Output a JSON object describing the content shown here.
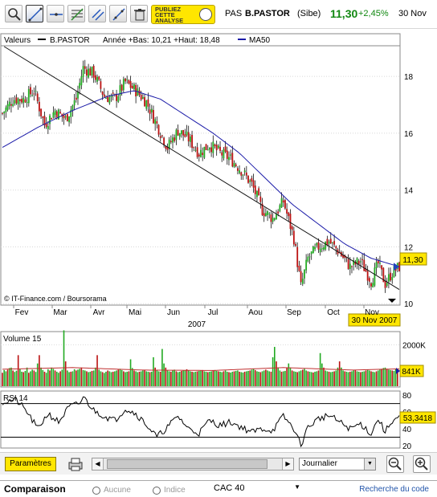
{
  "header": {
    "publish_text": "PUBLIEZ CETTE ANALYSE",
    "market": "PAS",
    "name": "B.PASTOR",
    "exchange": "(Sibe)",
    "price": "11,30",
    "change": "+2,45%",
    "date": "30 Nov"
  },
  "chart_data": [
    {
      "type": "candlestick",
      "title": "",
      "legend": {
        "label": "Valeurs",
        "series_name": "B.PASTOR",
        "range_text": "Année +Bas: 10,21 +Haut: 18,48",
        "ma_name": "MA50"
      },
      "credit": "© IT-Finance.com / Boursorama",
      "x_tick_labels": [
        "Fev",
        "Mar",
        "Avr",
        "Mai",
        "Jun",
        "Jul",
        "Aou",
        "Sep",
        "Oct",
        "Nov"
      ],
      "x_year_label": "2007",
      "date_badge": "30 Nov 2007",
      "y_tick_labels": [
        "18",
        "16",
        "14",
        "12",
        "10"
      ],
      "ylim": [
        9.95,
        19.05
      ],
      "last_price_badge": "11,30",
      "trendline": {
        "from": [
          1,
          19.05
        ],
        "to": [
          226,
          10.5
        ]
      },
      "prices": [
        {
          "x": 0,
          "y": 16.7
        },
        {
          "x": 6,
          "y": 17.2
        },
        {
          "x": 12,
          "y": 17.2
        },
        {
          "x": 18,
          "y": 17.5
        },
        {
          "x": 24,
          "y": 16.3
        },
        {
          "x": 30,
          "y": 16.8
        },
        {
          "x": 36,
          "y": 16.5
        },
        {
          "x": 42,
          "y": 17.2
        },
        {
          "x": 46,
          "y": 18.3
        },
        {
          "x": 52,
          "y": 18.1
        },
        {
          "x": 58,
          "y": 17.3
        },
        {
          "x": 64,
          "y": 17.2
        },
        {
          "x": 70,
          "y": 17.8
        },
        {
          "x": 76,
          "y": 17.5
        },
        {
          "x": 82,
          "y": 17.1
        },
        {
          "x": 88,
          "y": 16.3
        },
        {
          "x": 94,
          "y": 15.5
        },
        {
          "x": 100,
          "y": 16.1
        },
        {
          "x": 106,
          "y": 15.8
        },
        {
          "x": 112,
          "y": 15.3
        },
        {
          "x": 118,
          "y": 15.6
        },
        {
          "x": 124,
          "y": 15.3
        },
        {
          "x": 130,
          "y": 15.1
        },
        {
          "x": 136,
          "y": 14.7
        },
        {
          "x": 142,
          "y": 14.2
        },
        {
          "x": 148,
          "y": 13.3
        },
        {
          "x": 154,
          "y": 13.0
        },
        {
          "x": 160,
          "y": 13.6
        },
        {
          "x": 166,
          "y": 12.3
        },
        {
          "x": 170,
          "y": 10.6
        },
        {
          "x": 174,
          "y": 11.6
        },
        {
          "x": 180,
          "y": 12.0
        },
        {
          "x": 186,
          "y": 12.2
        },
        {
          "x": 192,
          "y": 11.8
        },
        {
          "x": 198,
          "y": 11.3
        },
        {
          "x": 204,
          "y": 11.5
        },
        {
          "x": 210,
          "y": 10.8
        },
        {
          "x": 214,
          "y": 11.4
        },
        {
          "x": 218,
          "y": 10.7
        },
        {
          "x": 222,
          "y": 11.1
        },
        {
          "x": 226,
          "y": 11.3
        }
      ],
      "ma50": [
        {
          "x": 0,
          "y": 15.5
        },
        {
          "x": 20,
          "y": 16.2
        },
        {
          "x": 40,
          "y": 16.8
        },
        {
          "x": 60,
          "y": 17.3
        },
        {
          "x": 75,
          "y": 17.5
        },
        {
          "x": 90,
          "y": 17.2
        },
        {
          "x": 105,
          "y": 16.6
        },
        {
          "x": 120,
          "y": 16.0
        },
        {
          "x": 135,
          "y": 15.3
        },
        {
          "x": 150,
          "y": 14.4
        },
        {
          "x": 165,
          "y": 13.5
        },
        {
          "x": 180,
          "y": 12.8
        },
        {
          "x": 195,
          "y": 12.1
        },
        {
          "x": 210,
          "y": 11.6
        },
        {
          "x": 226,
          "y": 11.3
        }
      ]
    },
    {
      "type": "bar",
      "title": "Volume 15",
      "y_tick_labels": [
        "2000K"
      ],
      "last_value_badge": "841K",
      "ylim": [
        0,
        2600
      ],
      "values": [
        650,
        780,
        720,
        800,
        880,
        900,
        760,
        690,
        750,
        1500,
        820,
        700,
        680,
        740,
        900,
        650,
        720,
        800,
        760,
        690,
        1100,
        1500,
        900,
        780,
        700,
        650,
        820,
        760,
        900,
        840,
        760,
        700,
        650,
        720,
        800,
        2700,
        1200,
        760,
        680,
        700,
        720,
        820,
        760,
        800,
        840,
        900,
        780,
        760,
        720,
        680,
        700,
        740,
        760,
        900,
        1500,
        800,
        720,
        680,
        640,
        700,
        760,
        720,
        680,
        700,
        720,
        760,
        800,
        840,
        780,
        720,
        680,
        700,
        720,
        1300,
        880,
        760,
        720,
        680,
        700,
        720,
        760,
        780,
        720,
        700,
        680,
        700,
        1400,
        900,
        760,
        720,
        700,
        1800,
        1100,
        900,
        760,
        720,
        700,
        760,
        800,
        720,
        680,
        700,
        740,
        760,
        780,
        820,
        760,
        720,
        700,
        680,
        700,
        720,
        740,
        760,
        780,
        720,
        700,
        680,
        700,
        720,
        760,
        780,
        740,
        720,
        700,
        680,
        720,
        760,
        700,
        680,
        660,
        700,
        720,
        740,
        760,
        700,
        680,
        660,
        700,
        720,
        740,
        760,
        800,
        840,
        780,
        720,
        700,
        680,
        720,
        760,
        800,
        760,
        720,
        700,
        1400,
        1900,
        1200,
        900,
        760,
        700,
        720,
        740,
        900,
        1100,
        900,
        760,
        720,
        700,
        680,
        720,
        760,
        800,
        840,
        760,
        720,
        700,
        680,
        660,
        700,
        720,
        760,
        1600,
        1100,
        900,
        760,
        720,
        700,
        680,
        700,
        720,
        760,
        900,
        1200,
        900,
        760,
        720,
        700,
        680,
        700,
        720,
        760,
        780,
        720,
        700,
        680,
        700,
        720,
        760,
        800,
        760,
        720,
        700,
        680,
        720,
        760,
        800,
        840,
        880,
        900,
        841,
        800,
        780,
        760,
        740,
        841,
        841
      ],
      "ma15": [
        {
          "x": 0,
          "y": 820
        },
        {
          "x": 40,
          "y": 900
        },
        {
          "x": 80,
          "y": 780
        },
        {
          "x": 120,
          "y": 760
        },
        {
          "x": 160,
          "y": 900
        },
        {
          "x": 200,
          "y": 780
        },
        {
          "x": 226,
          "y": 841
        }
      ]
    },
    {
      "type": "line",
      "title": "RSI 14",
      "y_tick_labels": [
        "80",
        "60",
        "40",
        "20"
      ],
      "ylim": [
        18,
        84
      ],
      "reference_lines": [
        70,
        30
      ],
      "last_value_badge": "53,3418",
      "values": [
        {
          "x": 0,
          "y": 72
        },
        {
          "x": 8,
          "y": 74
        },
        {
          "x": 14,
          "y": 60
        },
        {
          "x": 20,
          "y": 40
        },
        {
          "x": 26,
          "y": 58
        },
        {
          "x": 32,
          "y": 48
        },
        {
          "x": 38,
          "y": 66
        },
        {
          "x": 44,
          "y": 70
        },
        {
          "x": 46,
          "y": 78
        },
        {
          "x": 52,
          "y": 62
        },
        {
          "x": 58,
          "y": 55
        },
        {
          "x": 64,
          "y": 50
        },
        {
          "x": 70,
          "y": 64
        },
        {
          "x": 76,
          "y": 58
        },
        {
          "x": 82,
          "y": 45
        },
        {
          "x": 88,
          "y": 30
        },
        {
          "x": 94,
          "y": 42
        },
        {
          "x": 100,
          "y": 55
        },
        {
          "x": 106,
          "y": 40
        },
        {
          "x": 112,
          "y": 35
        },
        {
          "x": 118,
          "y": 50
        },
        {
          "x": 124,
          "y": 44
        },
        {
          "x": 130,
          "y": 48
        },
        {
          "x": 136,
          "y": 42
        },
        {
          "x": 142,
          "y": 36
        },
        {
          "x": 148,
          "y": 40
        },
        {
          "x": 154,
          "y": 38
        },
        {
          "x": 160,
          "y": 55
        },
        {
          "x": 166,
          "y": 40
        },
        {
          "x": 170,
          "y": 20
        },
        {
          "x": 174,
          "y": 42
        },
        {
          "x": 180,
          "y": 52
        },
        {
          "x": 186,
          "y": 56
        },
        {
          "x": 192,
          "y": 48
        },
        {
          "x": 198,
          "y": 40
        },
        {
          "x": 204,
          "y": 46
        },
        {
          "x": 210,
          "y": 34
        },
        {
          "x": 214,
          "y": 52
        },
        {
          "x": 218,
          "y": 36
        },
        {
          "x": 222,
          "y": 50
        },
        {
          "x": 226,
          "y": 53.34
        }
      ]
    }
  ],
  "controls": {
    "params_label": "Paramètres",
    "period_value": "Journalier"
  },
  "comparison": {
    "title": "Comparaison",
    "opt1": "Aucune",
    "opt2": "Indice",
    "index_value": "CAC 40",
    "code_link": "Recherche du code"
  },
  "colors": {
    "up": "#22aa22",
    "down": "#bb1111",
    "ma": "#1a1aa8",
    "badge": "#ffe600",
    "publish": "#ffe600"
  }
}
